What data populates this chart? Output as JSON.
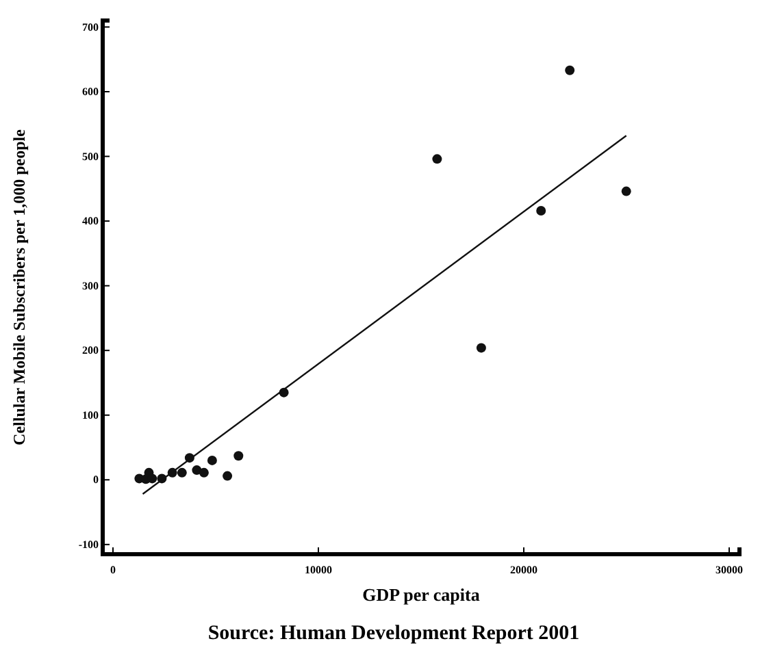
{
  "chart_data": {
    "type": "scatter",
    "xlabel": "GDP per capita",
    "ylabel": "Cellular Mobile Subscribers per 1,000 people",
    "annotations": [
      "Source: Human Development Report 2001"
    ],
    "xlim": [
      -500,
      30500
    ],
    "ylim": [
      -115,
      710
    ],
    "xticks": [
      0,
      10000,
      20000,
      30000
    ],
    "yticks": [
      -100,
      0,
      100,
      200,
      300,
      400,
      500,
      600,
      700
    ],
    "grid": false,
    "series": [
      {
        "marker": "circle",
        "color": "#111111",
        "x": [
          22240,
          15780,
          24990,
          20840,
          17930,
          8320,
          6110,
          4830,
          5570,
          3730,
          4080,
          4430,
          3360,
          2890,
          2380,
          1750,
          1450,
          1280,
          1600,
          1910
        ],
        "values": [
          633,
          496,
          446,
          416,
          204,
          135,
          37,
          30,
          6,
          34,
          15,
          11,
          11,
          11,
          2,
          11,
          null,
          2,
          1,
          2
        ]
      },
      {
        "type": "line",
        "color": "#111111",
        "line_style": "solid",
        "x": [
          1450,
          24990
        ],
        "values": [
          -22,
          532
        ]
      }
    ]
  }
}
